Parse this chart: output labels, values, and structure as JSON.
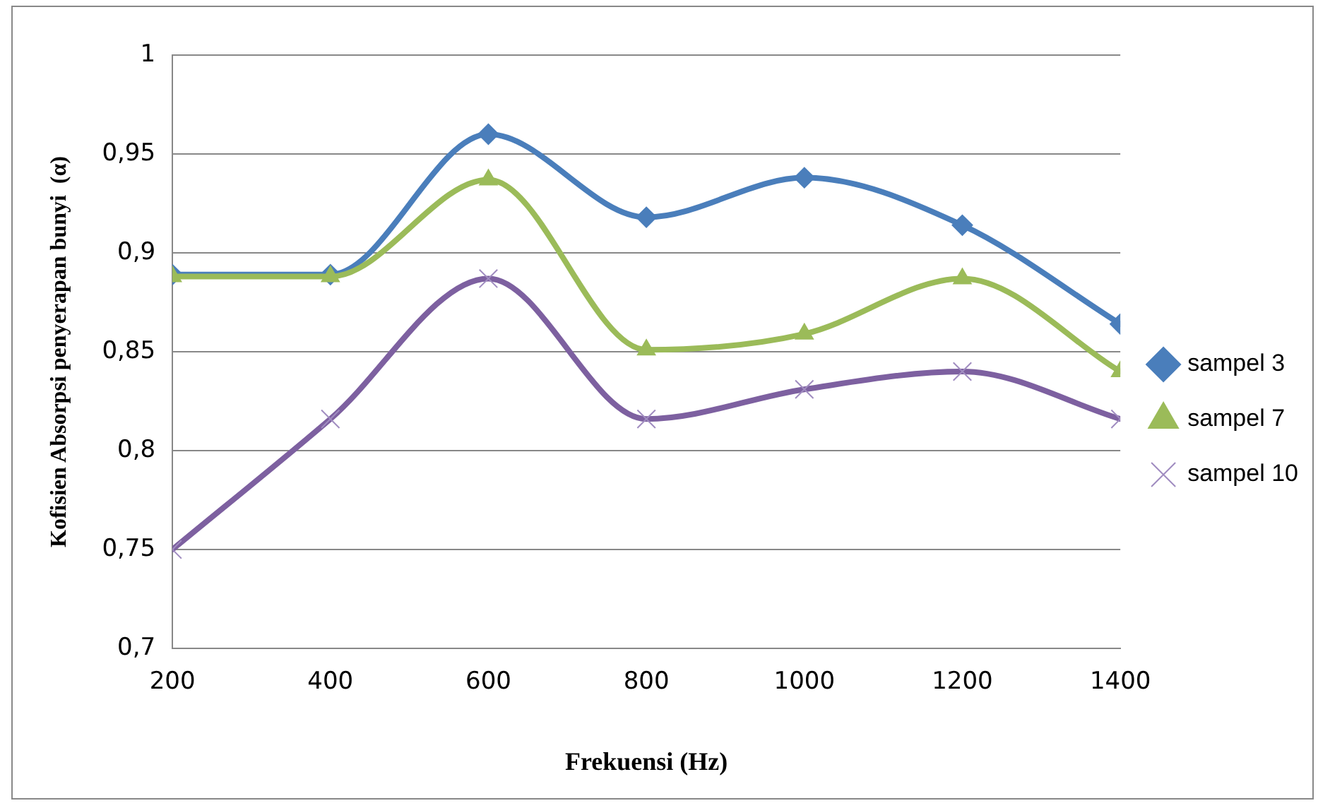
{
  "chart_data": {
    "type": "line",
    "xlabel": "Frekuensi (Hz)",
    "ylabel": "Kofisien Absorpsi penyerapan bunyi  (α)",
    "x": [
      200,
      400,
      600,
      800,
      1000,
      1200,
      1400
    ],
    "series": [
      {
        "name": "sampel 3",
        "color": "#4a7ebb",
        "marker": "diamond",
        "values": [
          0.889,
          0.889,
          0.96,
          0.918,
          0.938,
          0.914,
          0.864
        ]
      },
      {
        "name": "sampel 7",
        "color": "#9bbb59",
        "marker": "triangle",
        "values": [
          0.888,
          0.888,
          0.937,
          0.851,
          0.859,
          0.887,
          0.84
        ]
      },
      {
        "name": "sampel 10",
        "color": "#7d60a0",
        "marker": "cross",
        "values": [
          0.75,
          0.816,
          0.887,
          0.816,
          0.831,
          0.84,
          0.816
        ]
      }
    ],
    "xlim": [
      200,
      1400
    ],
    "xticks": [
      200,
      400,
      600,
      800,
      1000,
      1200,
      1400
    ],
    "ylim": [
      0.7,
      1
    ],
    "yticks": [
      {
        "value": 0.7,
        "label": "0,7"
      },
      {
        "value": 0.75,
        "label": "0,75"
      },
      {
        "value": 0.8,
        "label": "0,8"
      },
      {
        "value": 0.85,
        "label": "0,85"
      },
      {
        "value": 0.9,
        "label": "0,9"
      },
      {
        "value": 0.95,
        "label": "0,95"
      },
      {
        "value": 1,
        "label": "1"
      }
    ],
    "grid": "y",
    "legend": "right",
    "line_style": "solid"
  }
}
